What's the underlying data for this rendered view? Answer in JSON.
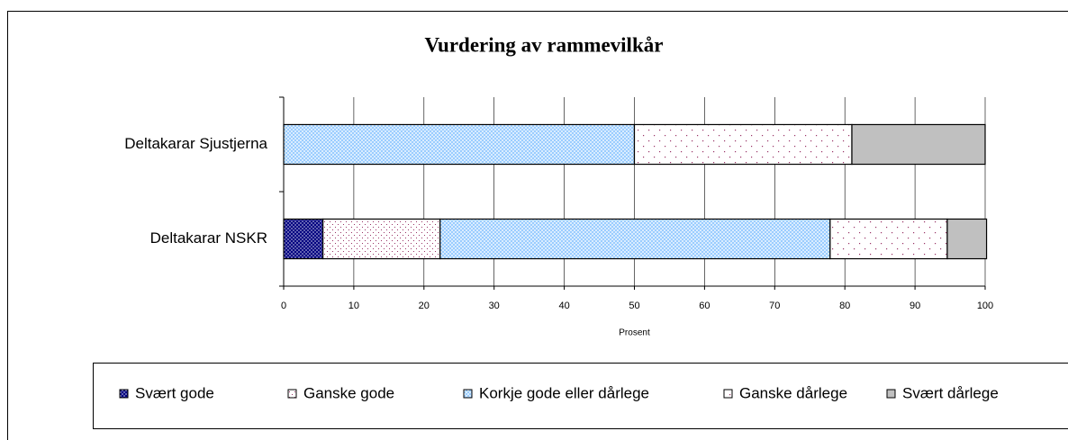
{
  "chart_data": {
    "type": "stacked-barh",
    "title": "Vurdering av rammevilkår",
    "categories": [
      "Deltakarar Sjustjerna",
      "Deltakarar NSKR"
    ],
    "series": [
      {
        "name": "Svært gode",
        "color": "#000080",
        "values": [
          0,
          5.6
        ]
      },
      {
        "name": "Ganske gode",
        "color": "#993366",
        "values": [
          0,
          16.7
        ]
      },
      {
        "name": "Korkje gode eller dårlege",
        "color": "#99ccff",
        "values": [
          50,
          55.6
        ]
      },
      {
        "name": "Ganske dårlege",
        "color": "#ffffff",
        "values": [
          31,
          16.7
        ]
      },
      {
        "name": "Svært dårlege",
        "color": "#c0c0c0",
        "values": [
          19,
          5.6
        ]
      }
    ],
    "xlabel": "Prosent",
    "xlim": [
      0,
      100
    ],
    "xticks": [
      0,
      10,
      20,
      30,
      40,
      50,
      60,
      70,
      80,
      90,
      100
    ],
    "grid": true,
    "legend": "bottom"
  }
}
